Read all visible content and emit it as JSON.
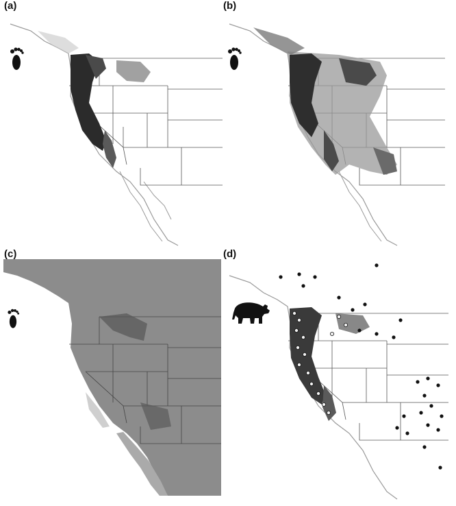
{
  "panels": [
    {
      "label": "(a)",
      "icon": "footprint-icon",
      "style": "prediction-light"
    },
    {
      "label": "(b)",
      "icon": "footprint-icon",
      "style": "prediction-broad"
    },
    {
      "label": "(c)",
      "icon": "footprint-icon",
      "style": "grey-background"
    },
    {
      "label": "(d)",
      "icon": "bear-icon",
      "style": "occurrence-points"
    }
  ],
  "colors": {
    "dark": "#2b2b2b",
    "mid": "#7a7a7a",
    "light": "#cfcfcf",
    "grey_bg": "#8c8c8c",
    "borders": "#555555",
    "white_point": "#f2f2f2",
    "black_point": "#111111"
  }
}
